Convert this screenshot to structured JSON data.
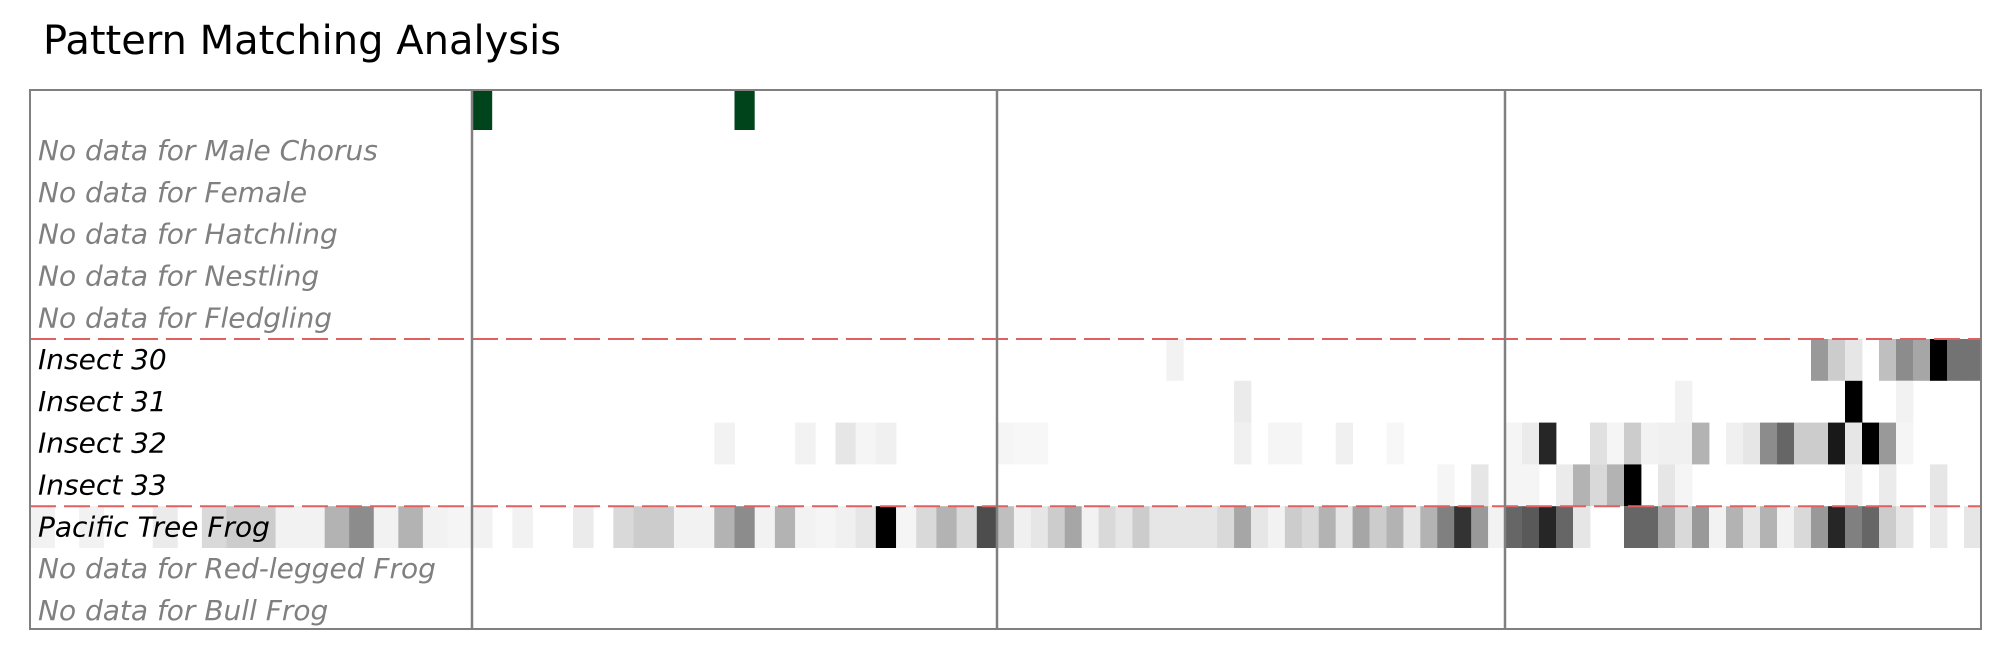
{
  "title": "Pattern Matching Analysis",
  "colors": {
    "frame": "#808080",
    "separator": "#e06060",
    "detection": "#00441b",
    "missing_label": "#808080",
    "present_label": "#000000"
  },
  "chart_data": {
    "type": "heatmap",
    "title": "Pattern Matching Analysis",
    "value_range": [
      0,
      1
    ],
    "colormap": "white-to-black",
    "columns_per_segment": [
      26,
      30,
      28
    ],
    "row_labels": [
      "No data for Male Chorus",
      "No data for Female",
      "No data for Hatchling",
      "No data for Nestling",
      "No data for Fledgling",
      "Insect 30",
      "Insect 31",
      "Insect 32",
      "Insect 33",
      "Pacific Tree Frog",
      "No data for Red-legged Frog",
      "No data for Bull Frog"
    ],
    "row_has_data": [
      false,
      false,
      false,
      false,
      false,
      true,
      true,
      true,
      true,
      true,
      false,
      false
    ],
    "group_separators_after_row": [
      4,
      8
    ],
    "detections": {
      "row": "top",
      "segment": 0,
      "columns": [
        0,
        13
      ]
    },
    "rows": [
      {
        "label": "Insect 30",
        "segments": [
          [
            0,
            0,
            0,
            0,
            0,
            0,
            0,
            0,
            0,
            0,
            0,
            0,
            0,
            0,
            0,
            0,
            0,
            0,
            0,
            0,
            0,
            0,
            0,
            0,
            0,
            0
          ],
          [
            0,
            0,
            0,
            0,
            0,
            0,
            0,
            0,
            0,
            0,
            0.05,
            0,
            0,
            0,
            0,
            0,
            0,
            0,
            0,
            0,
            0,
            0,
            0,
            0,
            0,
            0,
            0,
            0,
            0,
            0
          ],
          [
            0,
            0,
            0,
            0,
            0,
            0,
            0,
            0,
            0,
            0,
            0,
            0,
            0,
            0,
            0,
            0,
            0,
            0,
            0.4,
            0.2,
            0.1,
            0,
            0.25,
            0.45,
            0.35,
            1,
            0.55,
            0.55
          ]
        ]
      },
      {
        "label": "Insect 31",
        "segments": [
          [
            0,
            0,
            0,
            0,
            0,
            0,
            0,
            0,
            0,
            0,
            0,
            0,
            0,
            0,
            0,
            0,
            0,
            0,
            0,
            0,
            0,
            0,
            0,
            0,
            0,
            0
          ],
          [
            0,
            0,
            0,
            0,
            0,
            0,
            0,
            0,
            0,
            0,
            0,
            0,
            0,
            0,
            0.08,
            0,
            0,
            0,
            0,
            0,
            0,
            0,
            0,
            0,
            0,
            0,
            0,
            0,
            0,
            0
          ],
          [
            0,
            0,
            0,
            0,
            0,
            0,
            0,
            0,
            0,
            0,
            0.05,
            0,
            0,
            0,
            0,
            0,
            0,
            0,
            0,
            0,
            1,
            0,
            0,
            0.05,
            0,
            0,
            0,
            0
          ]
        ]
      },
      {
        "label": "Insect 32",
        "segments": [
          [
            0,
            0,
            0,
            0,
            0,
            0,
            0,
            0,
            0,
            0,
            0,
            0,
            0.05,
            0,
            0,
            0,
            0.05,
            0,
            0.1,
            0.04,
            0.06,
            0,
            0,
            0,
            0,
            0
          ],
          [
            0.04,
            0.03,
            0.03,
            0,
            0,
            0,
            0,
            0,
            0,
            0,
            0,
            0,
            0,
            0,
            0.06,
            0,
            0.04,
            0.04,
            0,
            0,
            0.06,
            0,
            0,
            0.03,
            0,
            0,
            0,
            0,
            0,
            0
          ],
          [
            0.04,
            0.08,
            0.85,
            0,
            0,
            0.12,
            0.04,
            0.2,
            0.05,
            0.06,
            0.06,
            0.3,
            0,
            0.06,
            0.1,
            0.45,
            0.6,
            0.2,
            0.2,
            0.9,
            0.1,
            1,
            0.4,
            0.04,
            0,
            0,
            0,
            0
          ]
        ]
      },
      {
        "label": "Insect 33",
        "segments": [
          [
            0,
            0,
            0,
            0,
            0,
            0,
            0,
            0,
            0,
            0,
            0,
            0,
            0,
            0,
            0,
            0,
            0,
            0,
            0,
            0,
            0,
            0,
            0,
            0,
            0,
            0
          ],
          [
            0,
            0,
            0,
            0,
            0,
            0,
            0,
            0,
            0,
            0,
            0,
            0,
            0,
            0,
            0,
            0,
            0,
            0,
            0,
            0,
            0,
            0,
            0,
            0,
            0,
            0,
            0.04,
            0,
            0.1,
            0
          ],
          [
            0.04,
            0.04,
            0,
            0.08,
            0.3,
            0.15,
            0.3,
            1,
            0,
            0.1,
            0.04,
            0,
            0,
            0,
            0,
            0,
            0,
            0,
            0,
            0,
            0.06,
            0,
            0.08,
            0,
            0,
            0.1,
            0,
            0
          ]
        ]
      },
      {
        "label": "Pacific Tree Frog",
        "segments": [
          [
            0.05,
            0,
            0.05,
            0,
            0,
            0.08,
            0,
            0.15,
            0.2,
            0.2,
            0.05,
            0.05,
            0.3,
            0.45,
            0.05,
            0.3,
            0.05,
            0.04,
            0.06,
            0.1,
            1,
            0.04,
            0.15,
            0.3,
            0.15,
            0.7
          ],
          [
            0.25,
            0.06,
            0.1,
            0.2,
            0.35,
            0.05,
            0.15,
            0.1,
            0.2,
            0.1,
            0.1,
            0.1,
            0.1,
            0.15,
            0.35,
            0.1,
            0.05,
            0.2,
            0.15,
            0.3,
            0.1,
            0.35,
            0.2,
            0.3,
            0.1,
            0.3,
            0.5,
            0.8,
            0.4,
            0.05
          ],
          [
            0.6,
            0.65,
            0.85,
            0.6,
            0.1,
            0,
            0,
            0.6,
            0.6,
            0.35,
            0.15,
            0.4,
            0.05,
            0.3,
            0.1,
            0.3,
            0.05,
            0.15,
            0.4,
            0.85,
            0.5,
            0.6,
            0.2,
            0.1,
            0,
            0.08,
            0,
            0.1
          ]
        ]
      }
    ]
  }
}
